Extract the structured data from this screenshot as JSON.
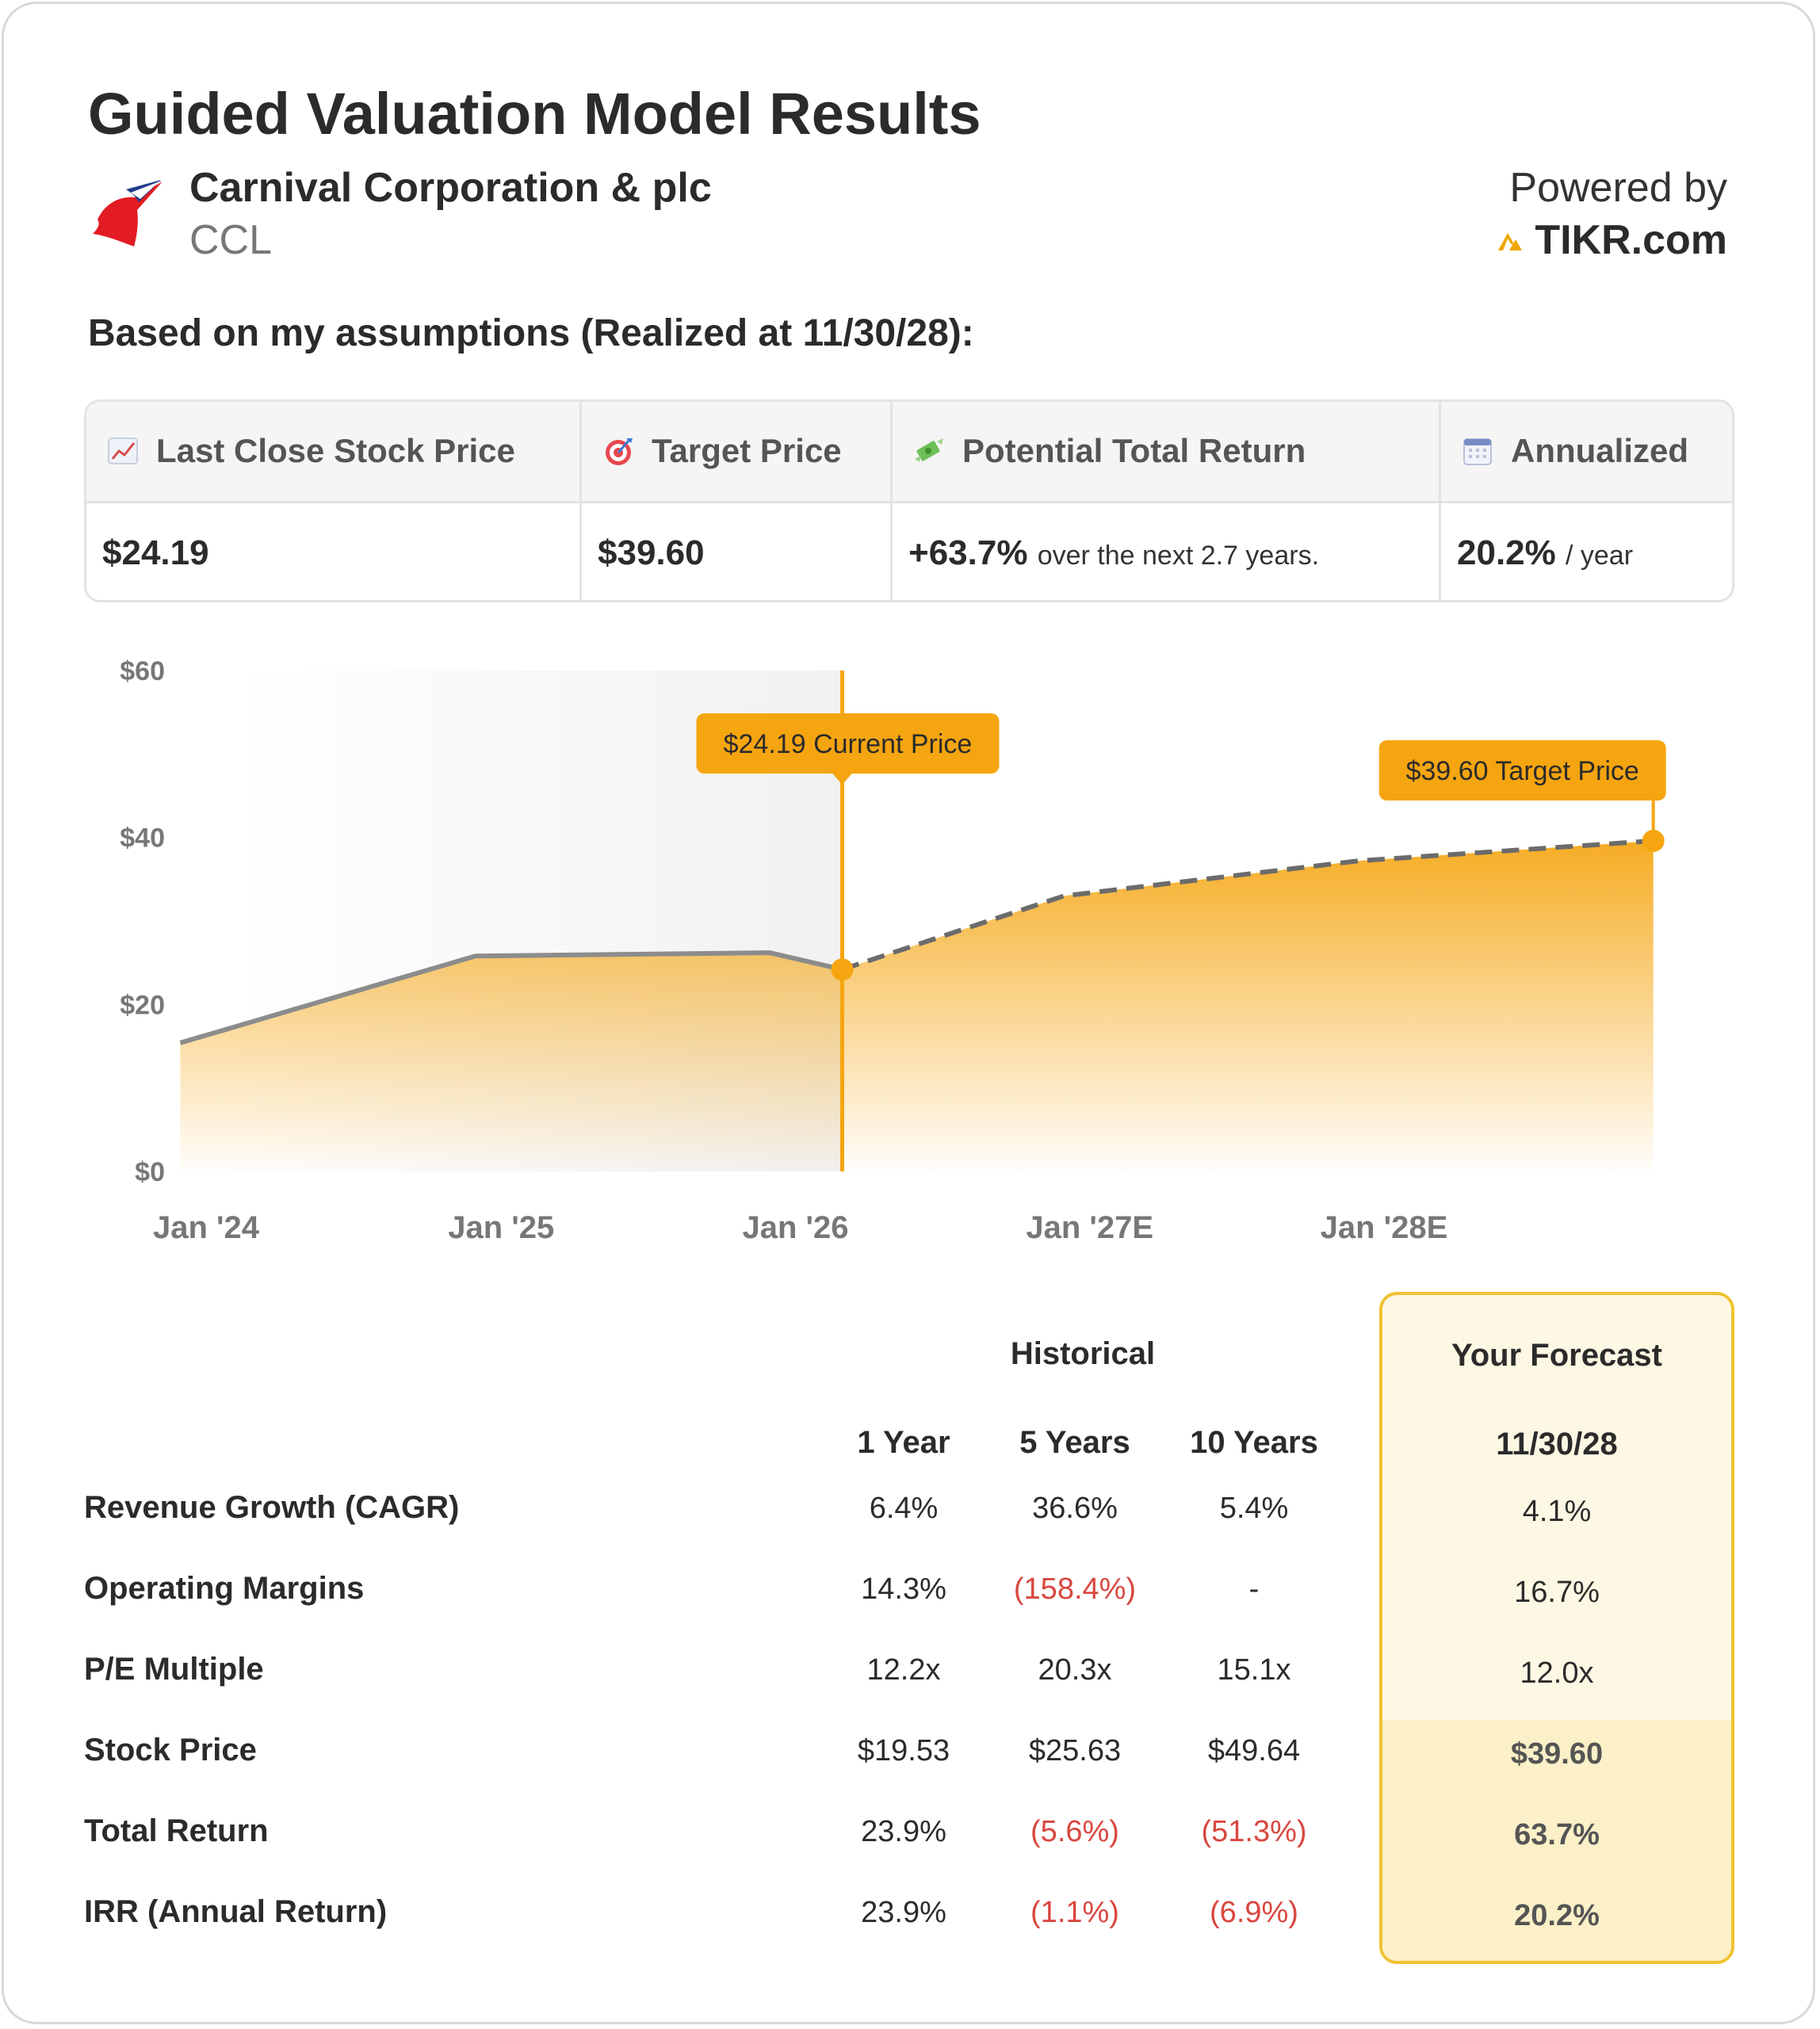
{
  "header": {
    "title": "Guided Valuation Model Results",
    "company": "Carnival Corporation & plc",
    "ticker": "CCL",
    "powered_by": "Powered by",
    "brand": "TIKR.com",
    "subtitle": "Based on my assumptions (Realized at 11/30/28):"
  },
  "summary": {
    "columns": [
      {
        "label": "Last Close Stock Price",
        "icon": "chart-increasing-icon",
        "value": "$24.19",
        "suffix": ""
      },
      {
        "label": "Target Price",
        "icon": "target-icon",
        "value": "$39.60",
        "suffix": ""
      },
      {
        "label": "Potential Total Return",
        "icon": "money-with-wings-icon",
        "value": "+63.7%",
        "suffix": "over the next 2.7 years."
      },
      {
        "label": "Annualized",
        "icon": "calendar-icon",
        "value": "20.2%",
        "suffix": "/ year"
      }
    ]
  },
  "chart_data": {
    "type": "area",
    "x_tick_labels": [
      "Jan '24",
      "Jan '25",
      "Jan '26",
      "Jan '27E",
      "Jan '28E"
    ],
    "y_tick_labels": [
      "$60",
      "$40",
      "$20",
      "$0"
    ],
    "ylim": [
      0,
      60
    ],
    "series": [
      {
        "kind": "historical",
        "points": [
          {
            "date": "2023-11-30",
            "value": 15.4
          },
          {
            "date": "2024-11-30",
            "value": 25.8
          },
          {
            "date": "2025-11-30",
            "value": 26.2
          },
          {
            "date": "2026-02-28",
            "value": 24.19
          }
        ]
      },
      {
        "kind": "forecast",
        "points": [
          {
            "date": "2026-02-28",
            "value": 24.19
          },
          {
            "date": "2026-11-30",
            "value": 33.0
          },
          {
            "date": "2027-11-30",
            "value": 37.2
          },
          {
            "date": "2028-11-30",
            "value": 39.6
          }
        ]
      }
    ],
    "current_date": "2026-02-28",
    "annotations": [
      {
        "text": "$24.19 Current Price",
        "date": "2026-02-28",
        "value": 24.19
      },
      {
        "text": "$39.60 Target Price",
        "date": "2028-11-30",
        "value": 39.6
      }
    ],
    "colors": {
      "accent": "#f5a510",
      "line": "#8c8c8c",
      "historical_bg": "#f1f1f1"
    }
  },
  "table": {
    "historical_label": "Historical",
    "forecast_label": "Your Forecast",
    "columns": [
      "1 Year",
      "5 Years",
      "10 Years"
    ],
    "forecast_column": "11/30/28",
    "rows": [
      {
        "label": "Revenue Growth (CAGR)",
        "values": [
          "6.4%",
          "36.6%",
          "5.4%"
        ],
        "forecast": "4.1%"
      },
      {
        "label": "Operating Margins",
        "values": [
          "14.3%",
          "(158.4%)",
          "-"
        ],
        "forecast": "16.7%"
      },
      {
        "label": "P/E Multiple",
        "values": [
          "12.2x",
          "20.3x",
          "15.1x"
        ],
        "forecast": "12.0x"
      },
      {
        "label": "Stock Price",
        "values": [
          "$19.53",
          "$25.63",
          "$49.64"
        ],
        "forecast": "$39.60"
      },
      {
        "label": "Total Return",
        "values": [
          "23.9%",
          "(5.6%)",
          "(51.3%)"
        ],
        "forecast": "63.7%"
      },
      {
        "label": "IRR (Annual Return)",
        "values": [
          "23.9%",
          "(1.1%)",
          "(6.9%)"
        ],
        "forecast": "20.2%"
      }
    ]
  }
}
